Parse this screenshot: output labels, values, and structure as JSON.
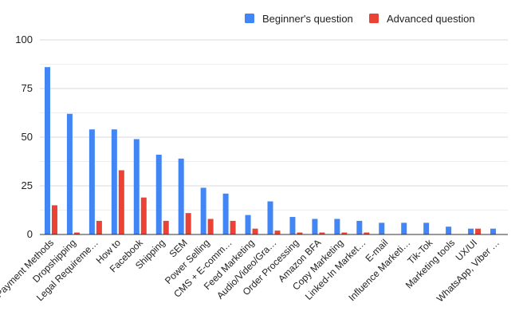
{
  "chart_data": {
    "type": "bar",
    "title": "",
    "xlabel": "",
    "ylabel": "",
    "ylim": [
      0,
      100
    ],
    "yticks": [
      0,
      25,
      50,
      75,
      100
    ],
    "grid": true,
    "legend_position": "top-right",
    "categories": [
      "Payment Methods",
      "Dropshipping",
      "Legal Requireme…",
      "How to",
      "Facebook",
      "Shipping",
      "SEM",
      "Power Selling",
      "CMS + E-comm…",
      "Feed Marketing",
      "Audio/Video/Gra…",
      "Order Processing",
      "Amazon BFA",
      "Copy Marketing",
      "Linked-In Market…",
      "E-mail",
      "Influence Marketi…",
      "Tik-Tok",
      "Marketing tools",
      "UX/UI",
      "WhatsApp, Viber …"
    ],
    "series": [
      {
        "name": "Beginner's question",
        "color": "#4285f4",
        "values": [
          86,
          62,
          54,
          54,
          49,
          41,
          39,
          24,
          21,
          10,
          17,
          9,
          8,
          8,
          7,
          6,
          6,
          6,
          4,
          3,
          3
        ]
      },
      {
        "name": "Advanced question",
        "color": "#ea4335",
        "values": [
          15,
          1,
          7,
          33,
          19,
          7,
          11,
          8,
          7,
          3,
          2,
          1,
          1,
          1,
          1,
          0,
          0,
          0,
          0,
          3,
          0
        ]
      }
    ]
  }
}
